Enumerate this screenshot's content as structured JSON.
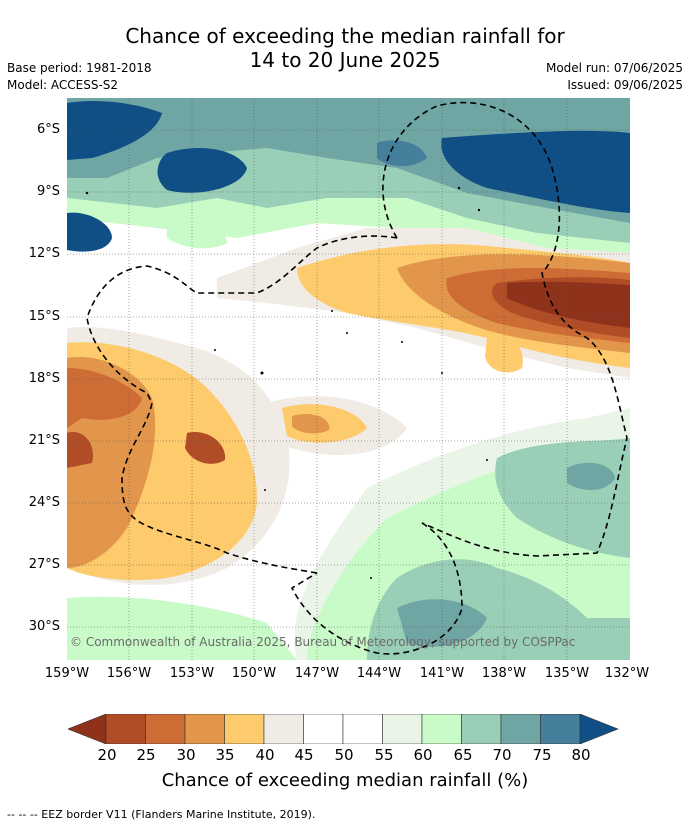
{
  "header": {
    "title_line1": "Chance of exceeding the median rainfall for",
    "title_line2": "14 to 20 June 2025",
    "base_period": "Base period: 1981-2018",
    "model": "Model: ACCESS-S2",
    "model_run": "Model run: 07/06/2025",
    "issued": "Issued: 09/06/2025"
  },
  "map": {
    "copyright": "© Commonwealth of Australia 2025, Bureau of Meteorology, supported by COSPPac",
    "lat_labels": [
      "6°S",
      "9°S",
      "12°S",
      "15°S",
      "18°S",
      "21°S",
      "24°S",
      "27°S",
      "30°S"
    ],
    "lon_labels": [
      "159°W",
      "156°W",
      "153°W",
      "150°W",
      "147°W",
      "144°W",
      "141°W",
      "138°W",
      "135°W",
      "132°W"
    ]
  },
  "colorbar": {
    "ticks": [
      "20",
      "25",
      "30",
      "35",
      "40",
      "45",
      "50",
      "55",
      "60",
      "65",
      "70",
      "75",
      "80"
    ],
    "colors": [
      "#8e321b",
      "#b04d26",
      "#cd6c35",
      "#e1964c",
      "#fdca6c",
      "#f0ebe5",
      "#ffffff",
      "#ffffff",
      "#eaf5e8",
      "#c9fbc9",
      "#99cfb6",
      "#6fa6a4",
      "#467f9c",
      "#104e86"
    ],
    "label": "Chance of exceeding median rainfall (%)"
  },
  "footnote": "-- -- -- EEZ border V11 (Flanders Marine Institute, 2019)."
}
